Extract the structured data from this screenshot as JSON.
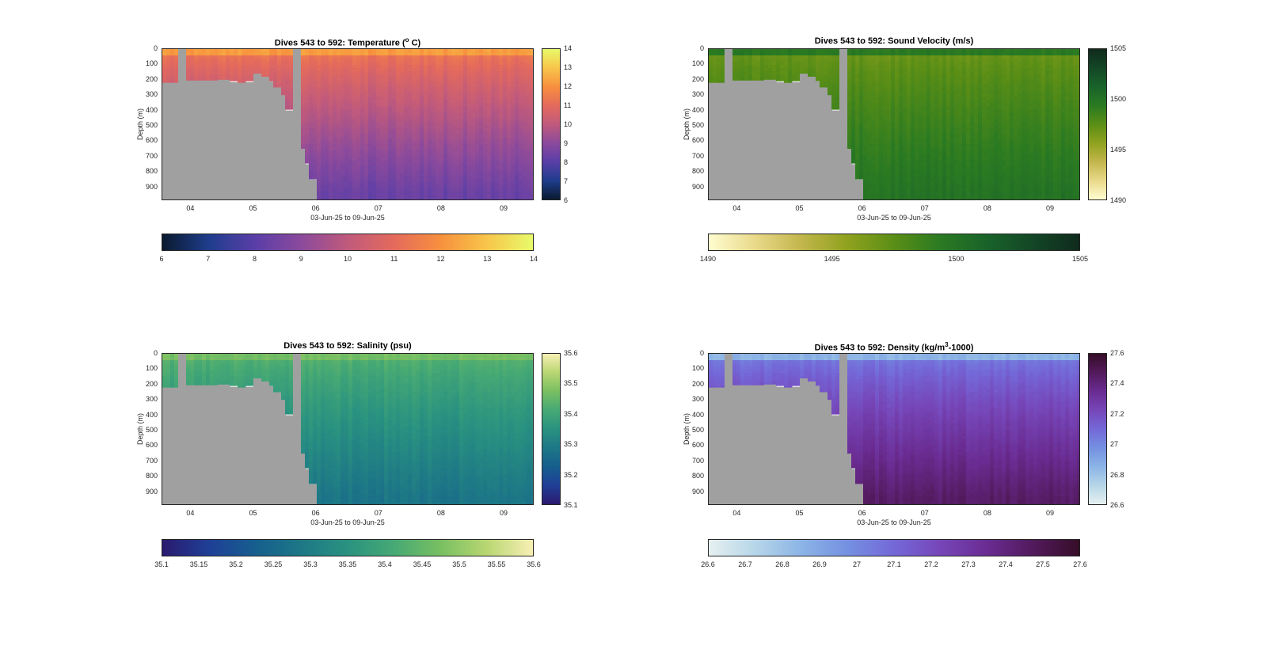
{
  "chart_data": [
    {
      "type": "heatmap",
      "id": "temperature",
      "title": "Dives 543 to 592: Temperature (",
      "title_sup": "o",
      "title_end": " C)",
      "xlabel": "03-Jun-25 to 09-Jun-25",
      "ylabel": "Depth (m)",
      "xlim": [
        3.54,
        9.48
      ],
      "ylim": [
        0,
        990
      ],
      "x_ticks": [
        "04",
        "05",
        "06",
        "07",
        "08",
        "09"
      ],
      "x_tick_values": [
        4,
        5,
        6,
        7,
        8,
        9
      ],
      "y_ticks": [
        "0",
        "100",
        "200",
        "300",
        "400",
        "500",
        "600",
        "700",
        "800",
        "900"
      ],
      "y_tick_values": [
        0,
        100,
        200,
        300,
        400,
        500,
        600,
        700,
        800,
        900
      ],
      "colormap": "thermal",
      "clim": [
        6,
        14
      ],
      "colorbar_ticks": [
        "6",
        "7",
        "8",
        "9",
        "10",
        "11",
        "12",
        "13",
        "14"
      ],
      "colorbar_tick_values": [
        6,
        7,
        8,
        9,
        10,
        11,
        12,
        13,
        14
      ],
      "surface_value": 12.2,
      "upper_value": 11.3,
      "deep_value": 8.3,
      "colors": [
        "#0a1a2e",
        "#1e3d8c",
        "#5a3ea8",
        "#8b4a9c",
        "#c05a7c",
        "#e46a5c",
        "#f7903e",
        "#f8c54a",
        "#e8fa6a"
      ]
    },
    {
      "type": "heatmap",
      "id": "sound_velocity",
      "title": "Dives 543 to 592: Sound Velocity (m/s)",
      "xlabel": "03-Jun-25 to 09-Jun-25",
      "ylabel": "Depth (m)",
      "xlim": [
        3.54,
        9.48
      ],
      "ylim": [
        0,
        990
      ],
      "x_ticks": [
        "04",
        "05",
        "06",
        "07",
        "08",
        "09"
      ],
      "x_tick_values": [
        4,
        5,
        6,
        7,
        8,
        9
      ],
      "y_ticks": [
        "0",
        "100",
        "200",
        "300",
        "400",
        "500",
        "600",
        "700",
        "800",
        "900"
      ],
      "y_tick_values": [
        0,
        100,
        200,
        300,
        400,
        500,
        600,
        700,
        800,
        900
      ],
      "colormap": "speed",
      "clim": [
        1490,
        1505
      ],
      "colorbar_ticks": [
        "1490",
        "1495",
        "1500",
        "1505"
      ],
      "colorbar_tick_values": [
        1490,
        1495,
        1500,
        1505
      ],
      "surface_value": 1499.5,
      "upper_value": 1497.0,
      "deep_value": 1500.0,
      "colors": [
        "#fffdd0",
        "#e9d98a",
        "#c2b64c",
        "#8fa21e",
        "#5a8e16",
        "#2a7a22",
        "#19632a",
        "#134626",
        "#102a1c"
      ]
    },
    {
      "type": "heatmap",
      "id": "salinity",
      "title": "Dives 543 to 592: Salinity (psu)",
      "xlabel": "03-Jun-25 to 09-Jun-25",
      "ylabel": "Depth (m)",
      "xlim": [
        3.54,
        9.48
      ],
      "ylim": [
        0,
        990
      ],
      "x_ticks": [
        "04",
        "05",
        "06",
        "07",
        "08",
        "09"
      ],
      "x_tick_values": [
        4,
        5,
        6,
        7,
        8,
        9
      ],
      "y_ticks": [
        "0",
        "100",
        "200",
        "300",
        "400",
        "500",
        "600",
        "700",
        "800",
        "900"
      ],
      "y_tick_values": [
        0,
        100,
        200,
        300,
        400,
        500,
        600,
        700,
        800,
        900
      ],
      "colormap": "haline",
      "clim": [
        35.1,
        35.6
      ],
      "colorbar_ticks": [
        "35.1",
        "35.15",
        "35.2",
        "35.25",
        "35.3",
        "35.35",
        "35.4",
        "35.45",
        "35.5",
        "35.55",
        "35.6"
      ],
      "colorbar_tick_values": [
        35.1,
        35.15,
        35.2,
        35.25,
        35.3,
        35.35,
        35.4,
        35.45,
        35.5,
        35.55,
        35.6
      ],
      "vcolorbar_ticks": [
        "35.1",
        "35.2",
        "35.3",
        "35.4",
        "35.5",
        "35.6"
      ],
      "vcolorbar_tick_values": [
        35.1,
        35.2,
        35.3,
        35.4,
        35.5,
        35.6
      ],
      "surface_value": 35.47,
      "upper_value": 35.43,
      "deep_value": 35.28,
      "colors": [
        "#2a1a6e",
        "#1f3f96",
        "#165e8e",
        "#1d7886",
        "#2a9280",
        "#46a974",
        "#78bf62",
        "#b8d672",
        "#f8f0b4"
      ]
    },
    {
      "type": "heatmap",
      "id": "density",
      "title": "Dives 543 to 592: Density (kg/m",
      "title_sup": "3",
      "title_end": "-1000)",
      "xlabel": "03-Jun-25 to 09-Jun-25",
      "ylabel": "Depth (m)",
      "xlim": [
        3.54,
        9.48
      ],
      "ylim": [
        0,
        990
      ],
      "x_ticks": [
        "04",
        "05",
        "06",
        "07",
        "08",
        "09"
      ],
      "x_tick_values": [
        4,
        5,
        6,
        7,
        8,
        9
      ],
      "y_ticks": [
        "0",
        "100",
        "200",
        "300",
        "400",
        "500",
        "600",
        "700",
        "800",
        "900"
      ],
      "y_tick_values": [
        0,
        100,
        200,
        300,
        400,
        500,
        600,
        700,
        800,
        900
      ],
      "colormap": "dense",
      "clim": [
        26.6,
        27.6
      ],
      "colorbar_ticks": [
        "26.6",
        "26.7",
        "26.8",
        "26.9",
        "27",
        "27.1",
        "27.2",
        "27.3",
        "27.4",
        "27.5",
        "27.6"
      ],
      "colorbar_tick_values": [
        26.6,
        26.7,
        26.8,
        26.9,
        27.0,
        27.1,
        27.2,
        27.3,
        27.4,
        27.5,
        27.6
      ],
      "vcolorbar_ticks": [
        "26.6",
        "26.8",
        "27",
        "27.2",
        "27.4",
        "27.6"
      ],
      "vcolorbar_tick_values": [
        26.6,
        26.8,
        27.0,
        27.2,
        27.4,
        27.6
      ],
      "surface_value": 26.85,
      "upper_value": 27.05,
      "deep_value": 27.45,
      "colors": [
        "#e6f0f0",
        "#b6d6e8",
        "#8cb4e6",
        "#7490e0",
        "#7468d8",
        "#7646b8",
        "#6a2c92",
        "#521a5c",
        "#360d28"
      ]
    }
  ],
  "profile": {
    "dives": [
      {
        "t": 3.54,
        "max_depth": 220
      },
      {
        "t": 3.8,
        "max_depth": 0
      },
      {
        "t": 3.93,
        "max_depth": 205
      },
      {
        "t": 4.45,
        "max_depth": 200
      },
      {
        "t": 4.62,
        "max_depth": 215
      },
      {
        "t": 4.72,
        "max_depth": 220
      },
      {
        "t": 4.85,
        "max_depth": 215
      },
      {
        "t": 4.97,
        "max_depth": 160
      },
      {
        "t": 5.1,
        "max_depth": 180
      },
      {
        "t": 5.22,
        "max_depth": 210
      },
      {
        "t": 5.34,
        "max_depth": 250
      },
      {
        "t": 5.42,
        "max_depth": 300
      },
      {
        "t": 5.52,
        "max_depth": 400
      },
      {
        "t": 5.64,
        "max_depth": 0
      },
      {
        "t": 5.74,
        "max_depth": 650
      },
      {
        "t": 5.8,
        "max_depth": 750
      },
      {
        "t": 5.9,
        "max_depth": 850
      },
      {
        "t": 6.02,
        "max_depth": 990
      }
    ]
  }
}
